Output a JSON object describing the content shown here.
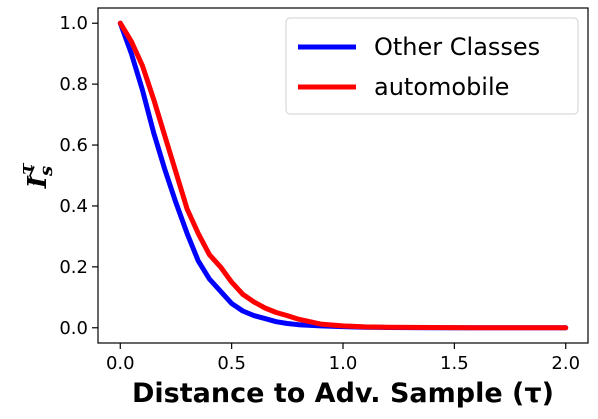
{
  "chart_data": {
    "type": "line",
    "title": "",
    "xlabel": "Distance to Adv. Sample (τ)",
    "ylabel_base": "I",
    "ylabel_sup": "τ",
    "ylabel_sub": "s",
    "xlim": [
      -0.1,
      2.1
    ],
    "ylim": [
      -0.05,
      1.05
    ],
    "xticks": [
      0.0,
      0.5,
      1.0,
      1.5,
      2.0
    ],
    "xtick_labels": [
      "0.0",
      "0.5",
      "1.0",
      "1.5",
      "2.0"
    ],
    "yticks": [
      0.0,
      0.2,
      0.4,
      0.6,
      0.8,
      1.0
    ],
    "ytick_labels": [
      "0.0",
      "0.2",
      "0.4",
      "0.6",
      "0.8",
      "1.0"
    ],
    "grid": false,
    "legend_position": "top-right",
    "series": [
      {
        "name": "Other Classes",
        "color": "#0000ff",
        "x": [
          0.0,
          0.05,
          0.1,
          0.15,
          0.2,
          0.25,
          0.3,
          0.35,
          0.4,
          0.45,
          0.5,
          0.55,
          0.6,
          0.65,
          0.7,
          0.75,
          0.8,
          0.9,
          1.0,
          1.1,
          1.2,
          1.4,
          1.6,
          1.8,
          2.0
        ],
        "y": [
          1.0,
          0.9,
          0.78,
          0.64,
          0.52,
          0.41,
          0.31,
          0.22,
          0.16,
          0.12,
          0.08,
          0.055,
          0.04,
          0.03,
          0.02,
          0.014,
          0.01,
          0.006,
          0.004,
          0.002,
          0.001,
          0.0,
          0.0,
          0.0,
          0.0
        ]
      },
      {
        "name": "automobile",
        "color": "#ff0000",
        "x": [
          0.0,
          0.05,
          0.1,
          0.15,
          0.2,
          0.25,
          0.3,
          0.35,
          0.4,
          0.45,
          0.5,
          0.55,
          0.6,
          0.65,
          0.7,
          0.75,
          0.8,
          0.9,
          1.0,
          1.1,
          1.2,
          1.4,
          1.6,
          1.8,
          2.0
        ],
        "y": [
          1.0,
          0.94,
          0.86,
          0.75,
          0.63,
          0.51,
          0.39,
          0.31,
          0.24,
          0.2,
          0.15,
          0.11,
          0.085,
          0.065,
          0.05,
          0.04,
          0.028,
          0.012,
          0.006,
          0.003,
          0.002,
          0.001,
          0.0,
          0.0,
          0.0
        ]
      }
    ]
  }
}
